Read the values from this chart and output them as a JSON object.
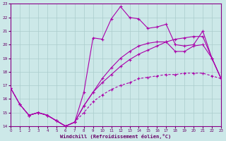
{
  "bg_color": "#cce8e8",
  "grid_color": "#aacccc",
  "line_color": "#aa00aa",
  "xlim": [
    0,
    23
  ],
  "ylim": [
    14,
    23
  ],
  "xticks": [
    0,
    1,
    2,
    3,
    4,
    5,
    6,
    7,
    8,
    9,
    10,
    11,
    12,
    13,
    14,
    15,
    16,
    17,
    18,
    19,
    20,
    21,
    22,
    23
  ],
  "yticks": [
    14,
    15,
    16,
    17,
    18,
    19,
    20,
    21,
    22,
    23
  ],
  "xlabel": "Windchill (Refroidissement éolien,°C)",
  "line1_x": [
    0,
    1,
    2,
    3,
    4,
    5,
    6,
    7,
    8,
    9,
    10,
    11,
    12,
    13,
    14,
    15,
    16,
    17,
    18,
    19,
    20,
    21,
    22,
    23
  ],
  "line1_y": [
    16.8,
    15.6,
    14.8,
    15.0,
    14.8,
    14.4,
    14.0,
    14.3,
    16.5,
    20.5,
    20.4,
    21.9,
    22.8,
    22.0,
    21.9,
    21.2,
    21.3,
    21.5,
    20.0,
    19.9,
    20.0,
    21.0,
    19.0,
    17.5
  ],
  "line2_x": [
    0,
    1,
    2,
    3,
    4,
    5,
    6,
    7,
    8,
    9,
    10,
    11,
    12,
    13,
    14,
    15,
    16,
    17,
    18,
    19,
    20,
    21,
    22,
    23
  ],
  "line2_y": [
    16.8,
    15.6,
    14.8,
    15.0,
    14.8,
    14.4,
    14.0,
    14.3,
    15.5,
    16.5,
    17.2,
    17.8,
    18.4,
    18.9,
    19.3,
    19.6,
    19.9,
    20.2,
    20.4,
    20.5,
    20.6,
    20.6,
    19.0,
    17.5
  ],
  "line3_x": [
    0,
    1,
    2,
    3,
    4,
    5,
    6,
    7,
    8,
    9,
    10,
    11,
    12,
    13,
    14,
    15,
    16,
    17,
    18,
    19,
    20,
    21,
    22,
    23
  ],
  "line3_y": [
    16.8,
    15.6,
    14.8,
    15.0,
    14.8,
    14.4,
    14.0,
    14.3,
    15.0,
    15.8,
    16.3,
    16.7,
    17.0,
    17.2,
    17.5,
    17.6,
    17.7,
    17.8,
    17.8,
    17.9,
    17.9,
    17.9,
    17.7,
    17.5
  ],
  "line4_x": [
    2,
    3,
    4,
    5,
    6,
    7,
    8,
    9,
    10,
    11,
    12,
    13,
    14,
    15,
    16,
    17,
    18,
    19,
    20,
    21,
    22,
    23
  ],
  "line4_y": [
    14.8,
    15.0,
    14.8,
    14.4,
    14.0,
    14.3,
    15.5,
    16.5,
    17.5,
    18.3,
    19.0,
    19.5,
    19.9,
    20.1,
    20.2,
    20.2,
    19.5,
    19.5,
    19.9,
    20.0,
    19.0,
    17.5
  ]
}
